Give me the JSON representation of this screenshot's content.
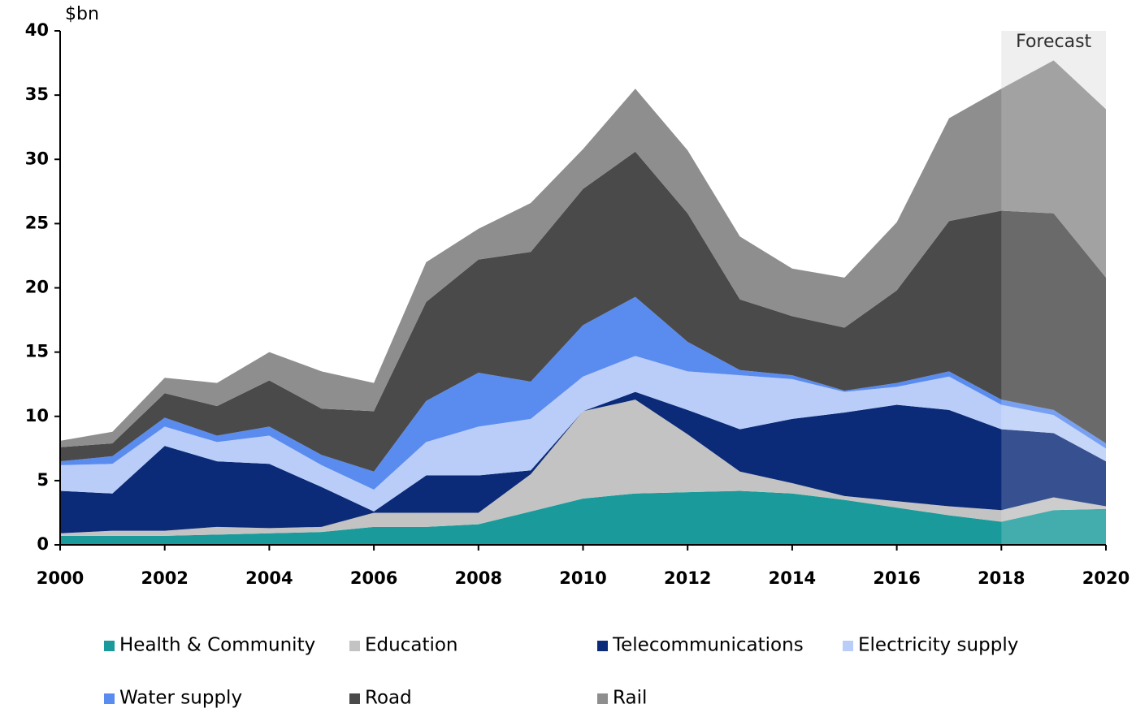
{
  "chart_data": {
    "type": "stacked_area",
    "y_label": "$bn",
    "x": [
      2000,
      2001,
      2002,
      2003,
      2004,
      2005,
      2006,
      2007,
      2008,
      2009,
      2010,
      2011,
      2012,
      2013,
      2014,
      2015,
      2016,
      2017,
      2018,
      2019,
      2020
    ],
    "xlim": [
      2000,
      2020
    ],
    "xticks": [
      2000,
      2002,
      2004,
      2006,
      2008,
      2010,
      2012,
      2014,
      2016,
      2018,
      2020
    ],
    "ylim": [
      0,
      40
    ],
    "yticks": [
      0,
      5,
      10,
      15,
      20,
      25,
      30,
      35,
      40
    ],
    "forecast": {
      "label": "Forecast",
      "from": 2018,
      "to": 2020
    },
    "series": [
      {
        "name": "Health & Community",
        "color": "#1a9a9a",
        "values": [
          0.7,
          0.7,
          0.7,
          0.8,
          0.9,
          1.0,
          1.4,
          1.4,
          1.6,
          2.6,
          3.6,
          4.0,
          4.1,
          4.2,
          4.0,
          3.5,
          2.9,
          2.3,
          1.8,
          2.7,
          2.8
        ]
      },
      {
        "name": "Education",
        "color": "#c3c3c3",
        "values": [
          0.2,
          0.4,
          0.4,
          0.6,
          0.4,
          0.4,
          1.1,
          1.1,
          0.9,
          2.9,
          6.8,
          7.3,
          4.5,
          1.5,
          0.8,
          0.3,
          0.5,
          0.7,
          0.9,
          1.0,
          0.2
        ]
      },
      {
        "name": "Telecommunications",
        "color": "#0b2a78",
        "values": [
          3.3,
          2.9,
          6.6,
          5.1,
          5.0,
          3.1,
          0.1,
          2.9,
          2.9,
          0.3,
          0.0,
          0.6,
          1.9,
          3.3,
          5.0,
          6.5,
          7.5,
          7.5,
          6.3,
          5.0,
          3.5
        ]
      },
      {
        "name": "Electricity supply",
        "color": "#b9cdf8",
        "values": [
          2.0,
          2.3,
          1.5,
          1.5,
          2.2,
          1.7,
          1.7,
          2.6,
          3.8,
          4.0,
          2.7,
          2.8,
          3.0,
          4.2,
          3.1,
          1.6,
          1.4,
          2.6,
          1.9,
          1.4,
          1.0
        ]
      },
      {
        "name": "Water supply",
        "color": "#5a8cf0",
        "values": [
          0.3,
          0.6,
          0.7,
          0.5,
          0.7,
          0.8,
          1.4,
          3.2,
          4.2,
          2.9,
          4.0,
          4.6,
          2.3,
          0.4,
          0.3,
          0.1,
          0.3,
          0.4,
          0.4,
          0.4,
          0.4
        ]
      },
      {
        "name": "Road",
        "color": "#4a4a4a",
        "values": [
          1.1,
          1.0,
          1.9,
          2.3,
          3.6,
          3.6,
          4.7,
          7.7,
          8.8,
          10.1,
          10.6,
          11.3,
          10.0,
          5.5,
          4.6,
          4.9,
          7.2,
          11.7,
          14.7,
          15.3,
          12.9
        ]
      },
      {
        "name": "Rail",
        "color": "#8e8e8e",
        "values": [
          0.5,
          0.9,
          1.2,
          1.8,
          2.2,
          2.9,
          2.2,
          3.1,
          2.4,
          3.8,
          3.1,
          4.9,
          4.9,
          4.9,
          3.7,
          3.9,
          5.3,
          8.0,
          9.5,
          11.9,
          13.1
        ]
      }
    ]
  }
}
